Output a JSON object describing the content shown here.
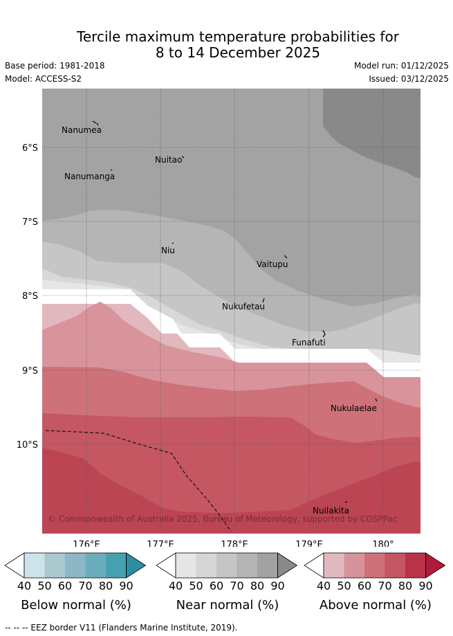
{
  "title_line1": "Tercile maximum temperature probabilities for",
  "title_line2": "8 to 14 December 2025",
  "base_period": "Base period: 1981-2018",
  "model": "Model: ACCESS-S2",
  "model_run": "Model run: 01/12/2025",
  "issued": "Issued: 03/12/2025",
  "map": {
    "lon_ticks": [
      "176°E",
      "177°E",
      "178°E",
      "179°E",
      "180°"
    ],
    "lat_ticks": [
      "6°S",
      "7°S",
      "8°S",
      "9°S",
      "10°S"
    ],
    "places": {
      "nanumea": "Nanumea",
      "nuitao": "Nuitao",
      "nanumanga": "Nanumanga",
      "niu": "Niu",
      "vaitupu": "Vaitupu",
      "nukufetau": "Nukufetau",
      "funafuti": "Funafuti",
      "nukulaelae": "Nukulaelae",
      "nuilakita": "Nuilakita"
    },
    "copyright": "© Commonwealth of Australia 2025, Bureau of Meteorology, supported by COSPPac"
  },
  "legend": {
    "ticks": [
      "40",
      "50",
      "60",
      "70",
      "80",
      "90"
    ],
    "below": {
      "title": "Below normal (%)",
      "colors": [
        "#cde3ea",
        "#a9c9cf",
        "#8bb8c4",
        "#6aaebe",
        "#47a0b2",
        "#2c8da3"
      ]
    },
    "near": {
      "title": "Near normal (%)",
      "colors": [
        "#e6e6e6",
        "#d6d6d6",
        "#c5c5c5",
        "#b4b4b4",
        "#a2a2a2",
        "#8a8a8a"
      ]
    },
    "above": {
      "title": "Above normal (%)",
      "colors": [
        "#e2b8bf",
        "#d7939b",
        "#ce7179",
        "#c45762",
        "#bb324b",
        "#ae1b3b"
      ]
    }
  },
  "footer": "--  --  -- EEZ border V11 (Flanders Marine Institute, 2019)."
}
